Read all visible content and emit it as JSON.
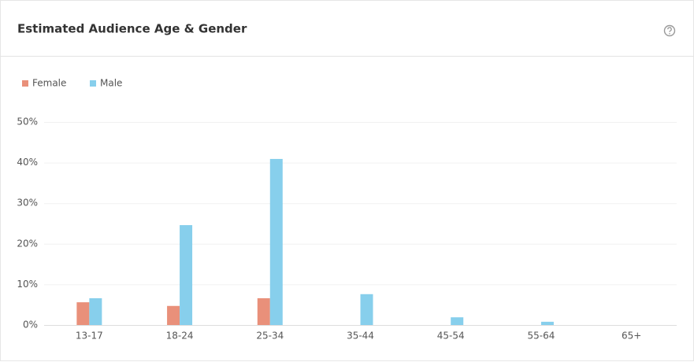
{
  "chart_data": {
    "type": "bar",
    "title": "Estimated Audience Age & Gender",
    "categories": [
      "13-17",
      "18-24",
      "25-34",
      "35-44",
      "45-54",
      "55-64",
      "65+"
    ],
    "series": [
      {
        "name": "Female",
        "color": "#e9907a",
        "values": [
          5.6,
          4.7,
          6.6,
          0,
          0,
          0,
          0
        ]
      },
      {
        "name": "Male",
        "color": "#87cfec",
        "values": [
          6.6,
          24.6,
          40.9,
          7.6,
          1.9,
          0.8,
          0
        ]
      }
    ],
    "ylim": [
      0,
      50
    ],
    "yticks": [
      {
        "value": 0,
        "label": "0%"
      },
      {
        "value": 10,
        "label": "10%"
      },
      {
        "value": 20,
        "label": "20%"
      },
      {
        "value": 30,
        "label": "30%"
      },
      {
        "value": 40,
        "label": "40%"
      },
      {
        "value": 50,
        "label": "50%"
      }
    ],
    "grid": true,
    "legend": "top-left"
  }
}
